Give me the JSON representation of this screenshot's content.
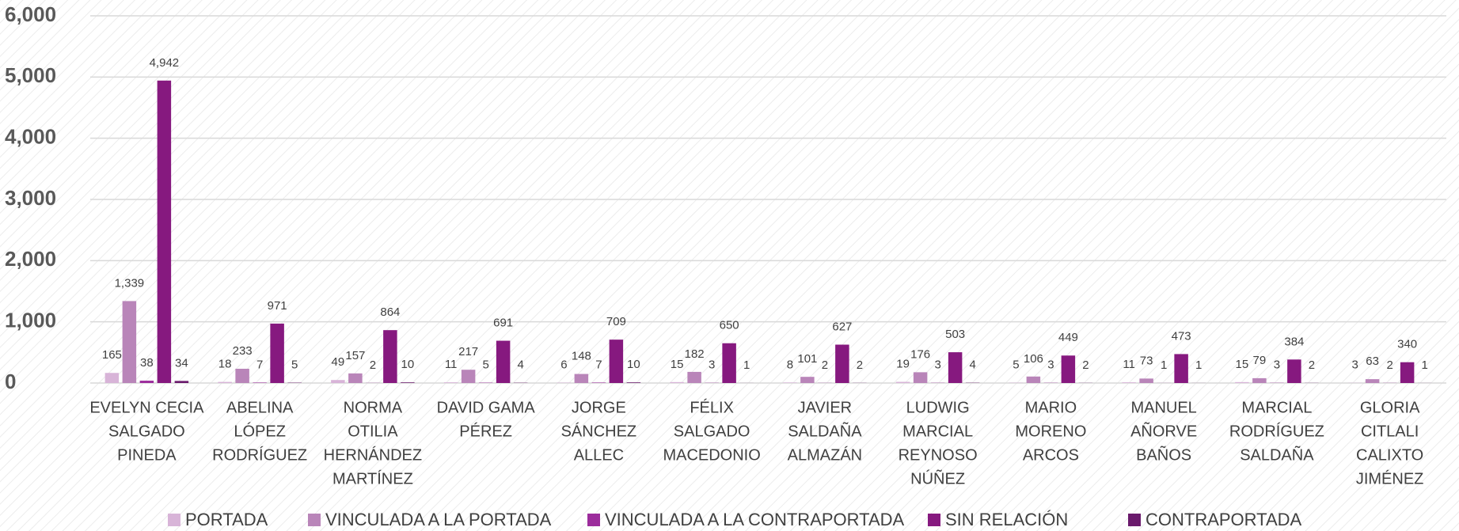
{
  "chart_data": {
    "type": "bar",
    "categories": [
      [
        "EVELYN CECIA",
        "SALGADO",
        "PINEDA"
      ],
      [
        "ABELINA",
        "LÓPEZ",
        "RODRÍGUEZ"
      ],
      [
        "NORMA",
        "OTILIA",
        "HERNÁNDEZ",
        "MARTÍNEZ"
      ],
      [
        "DAVID GAMA",
        "PÉREZ"
      ],
      [
        "JORGE",
        "SÁNCHEZ",
        "ALLEC"
      ],
      [
        "FÉLIX",
        "SALGADO",
        "MACEDONIO"
      ],
      [
        "JAVIER",
        "SALDAÑA",
        "ALMAZÁN"
      ],
      [
        "LUDWIG",
        "MARCIAL",
        "REYNOSO",
        "NÚÑEZ"
      ],
      [
        "MARIO",
        "MORENO",
        "ARCOS"
      ],
      [
        "MANUEL",
        "AÑORVE",
        "BAÑOS"
      ],
      [
        "MARCIAL",
        "RODRÍGUEZ",
        "SALDAÑA"
      ],
      [
        "GLORIA",
        "CITLALI",
        "CALIXTO",
        "JIMÉNEZ"
      ]
    ],
    "series": [
      {
        "name": "PORTADA",
        "color": "#d8b4d8",
        "values": [
          165,
          18,
          49,
          11,
          6,
          15,
          8,
          19,
          5,
          11,
          15,
          3
        ]
      },
      {
        "name": "VINCULADA A LA PORTADA",
        "color": "#b985b9",
        "values": [
          1339,
          233,
          157,
          217,
          148,
          182,
          101,
          176,
          106,
          73,
          79,
          63
        ],
        "value_labels": [
          "1,339",
          "233",
          "157",
          "217",
          "148",
          "182",
          "101",
          "176",
          "106",
          "73",
          "79",
          "63"
        ]
      },
      {
        "name": "VINCULADA A LA CONTRAPORTADA",
        "color": "#9c2c9c",
        "values": [
          38,
          7,
          2,
          5,
          7,
          3,
          2,
          3,
          3,
          1,
          3,
          2
        ]
      },
      {
        "name": "SIN RELACIÓN",
        "color": "#86197f",
        "values": [
          4942,
          971,
          864,
          691,
          709,
          650,
          627,
          503,
          449,
          473,
          384,
          340
        ],
        "value_labels": [
          "4,942",
          "971",
          "864",
          "691",
          "709",
          "650",
          "627",
          "503",
          "449",
          "473",
          "384",
          "340"
        ]
      },
      {
        "name": "CONTRAPORTADA",
        "color": "#6a1a6c",
        "values": [
          34,
          5,
          10,
          4,
          10,
          1,
          2,
          4,
          2,
          1,
          2,
          1
        ]
      }
    ],
    "ylim": [
      0,
      6000
    ],
    "yticks": [
      0,
      {
        "value": 1000,
        "label": "1,000"
      },
      {
        "value": 2000,
        "label": "2,000"
      },
      {
        "value": 3000,
        "label": "3,000"
      },
      {
        "value": 4000,
        "label": "4,000"
      },
      {
        "value": 5000,
        "label": "5,000"
      },
      {
        "value": 6000,
        "label": "6,000"
      }
    ],
    "grid": true,
    "legend": "bottom"
  }
}
